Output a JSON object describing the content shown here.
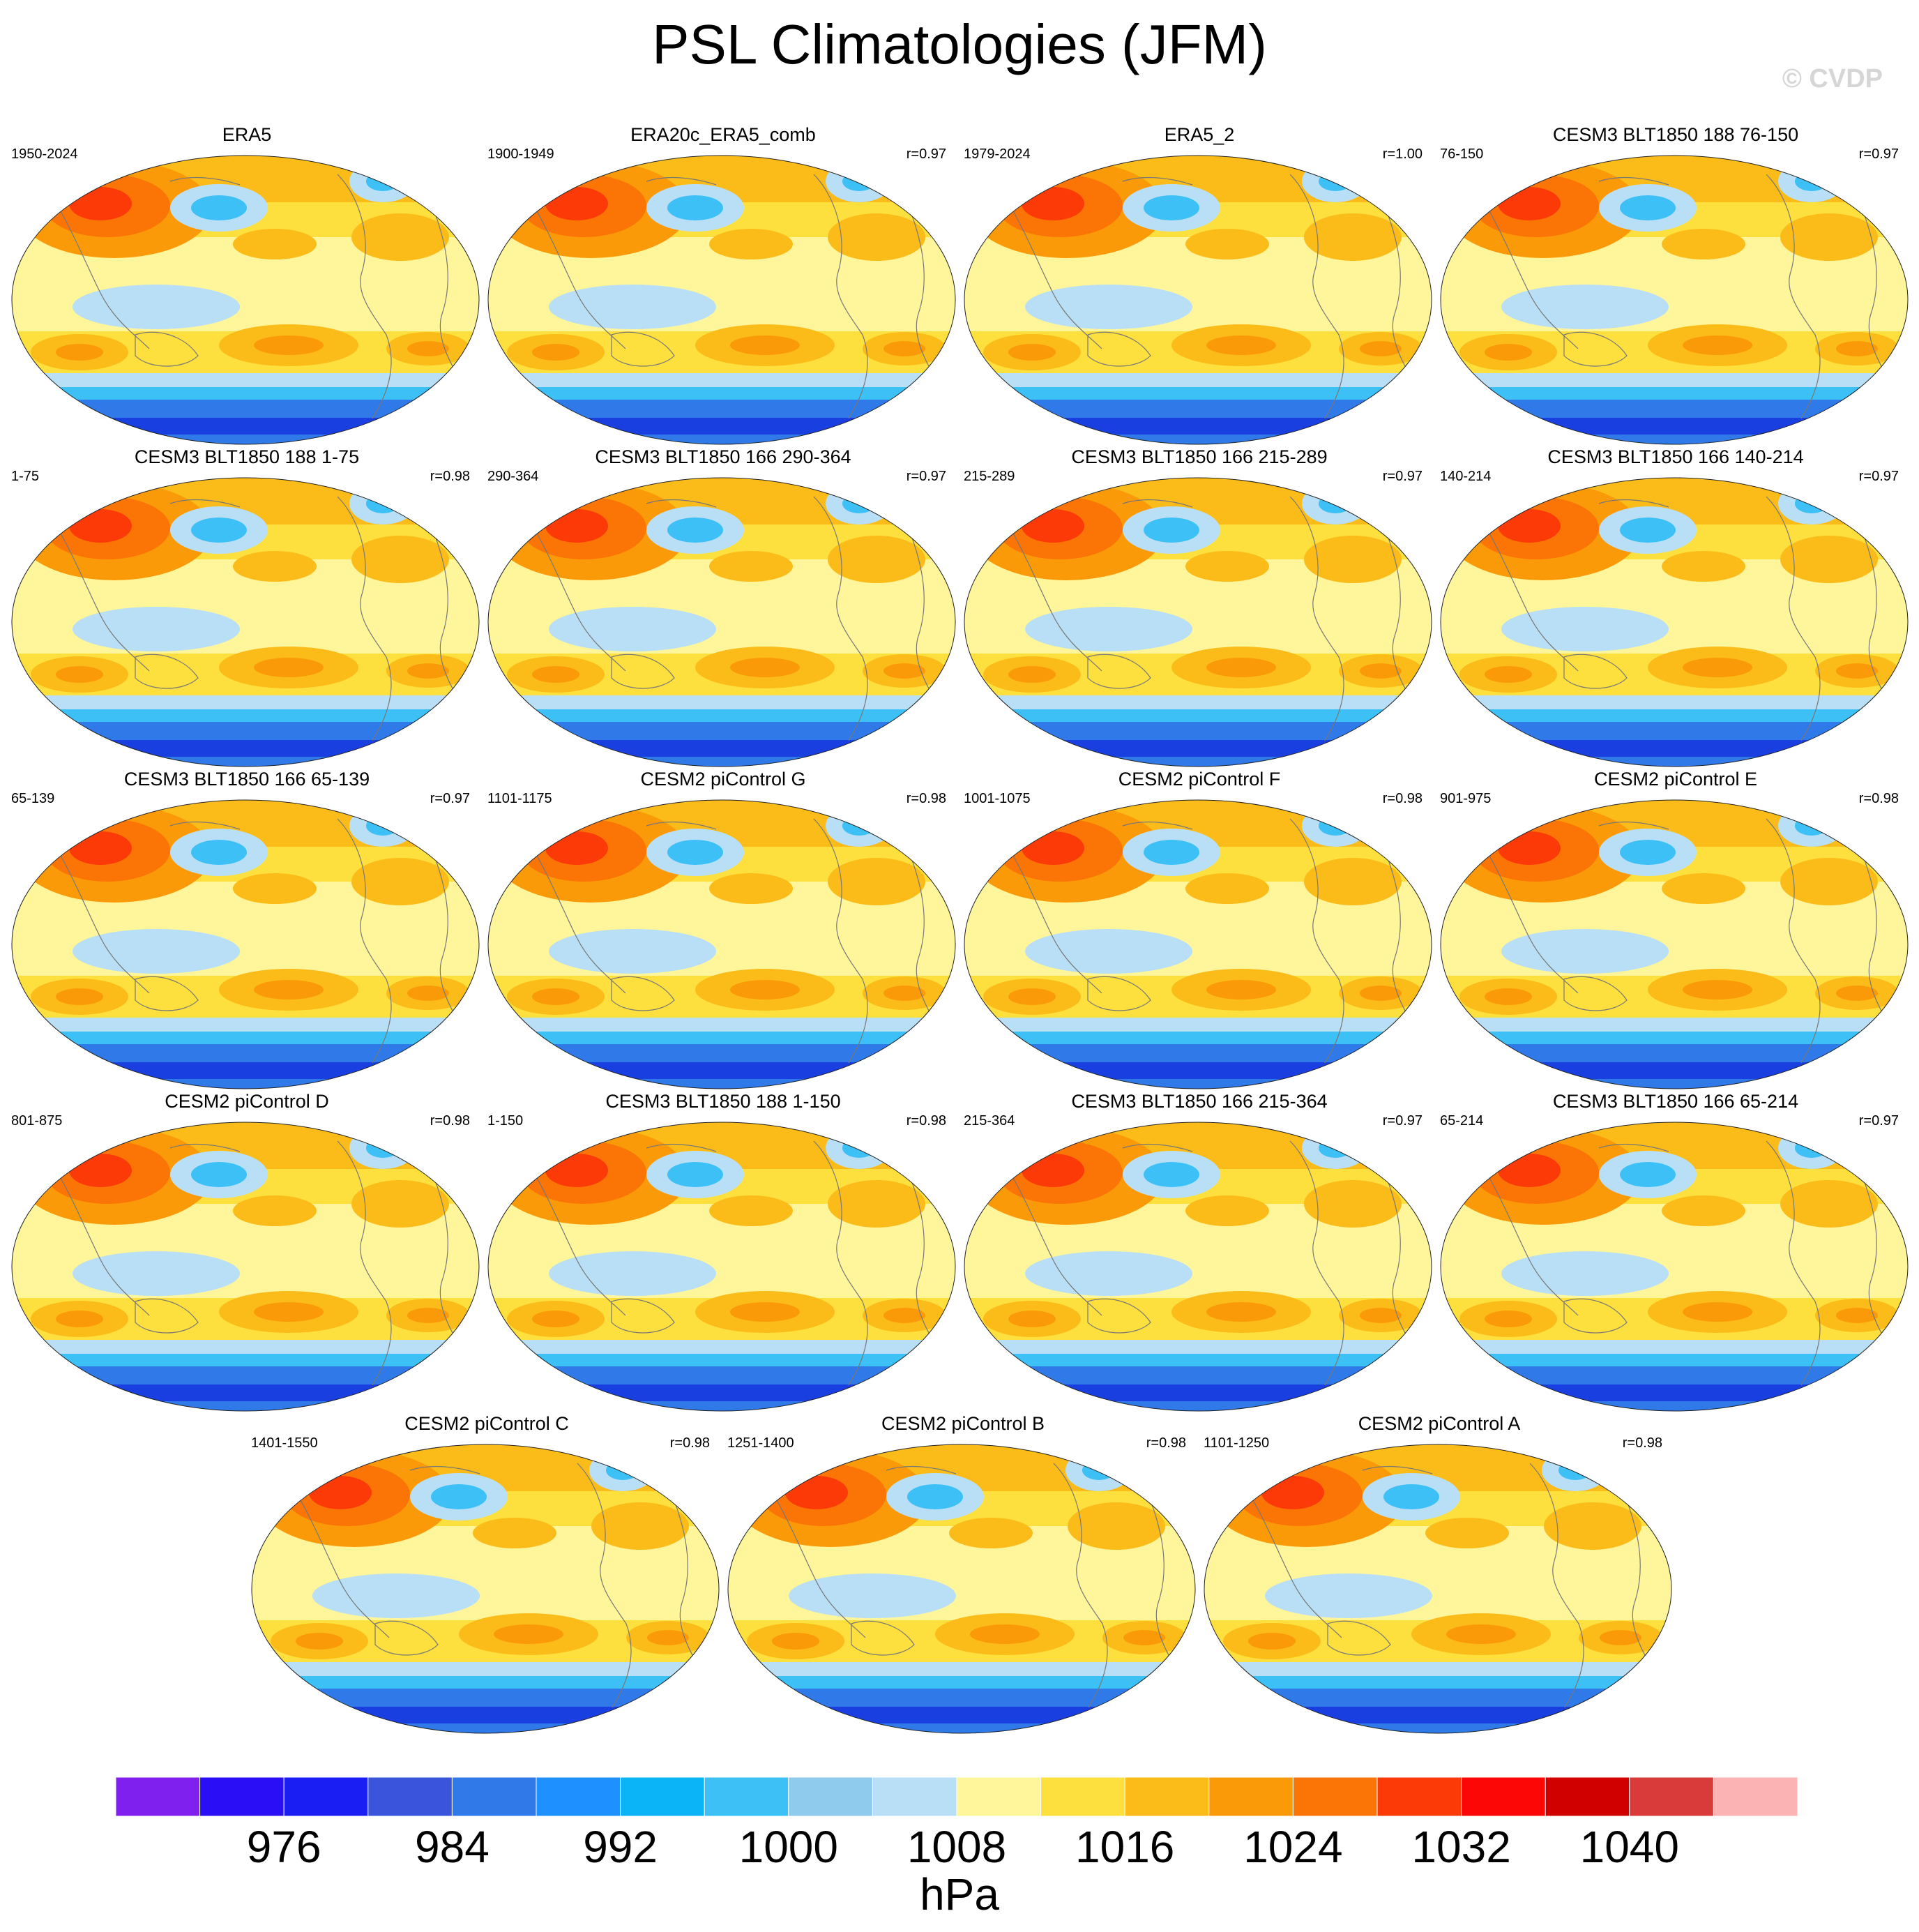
{
  "title": "PSL Climatologies (JFM)",
  "copyright": "© CVDP",
  "units": "hPa",
  "panels": [
    {
      "name": "ERA5",
      "years": "1950-2024",
      "r": ""
    },
    {
      "name": "ERA20c_ERA5_comb",
      "years": "1900-1949",
      "r": "r=0.97"
    },
    {
      "name": "ERA5_2",
      "years": "1979-2024",
      "r": "r=1.00"
    },
    {
      "name": "CESM3 BLT1850 188 76-150",
      "years": "76-150",
      "r": "r=0.97"
    },
    {
      "name": "CESM3 BLT1850 188 1-75",
      "years": "1-75",
      "r": "r=0.98"
    },
    {
      "name": "CESM3 BLT1850 166 290-364",
      "years": "290-364",
      "r": "r=0.97"
    },
    {
      "name": "CESM3 BLT1850 166 215-289",
      "years": "215-289",
      "r": "r=0.97"
    },
    {
      "name": "CESM3 BLT1850 166 140-214",
      "years": "140-214",
      "r": "r=0.97"
    },
    {
      "name": "CESM3 BLT1850 166 65-139",
      "years": "65-139",
      "r": "r=0.97"
    },
    {
      "name": "CESM2 piControl G",
      "years": "1101-1175",
      "r": "r=0.98"
    },
    {
      "name": "CESM2 piControl F",
      "years": "1001-1075",
      "r": "r=0.98"
    },
    {
      "name": "CESM2 piControl E",
      "years": "901-975",
      "r": "r=0.98"
    },
    {
      "name": "CESM2 piControl D",
      "years": "801-875",
      "r": "r=0.98"
    },
    {
      "name": "CESM3 BLT1850 188 1-150",
      "years": "1-150",
      "r": "r=0.98"
    },
    {
      "name": "CESM3 BLT1850 166 215-364",
      "years": "215-364",
      "r": "r=0.97"
    },
    {
      "name": "CESM3 BLT1850 166 65-214",
      "years": "65-214",
      "r": "r=0.97"
    },
    {
      "name": "CESM2 piControl C",
      "years": "1401-1550",
      "r": "r=0.98"
    },
    {
      "name": "CESM2 piControl B",
      "years": "1251-1400",
      "r": "r=0.98"
    },
    {
      "name": "CESM2 piControl A",
      "years": "1101-1250",
      "r": "r=0.98"
    }
  ],
  "colorbar": {
    "colors": [
      "#7f20ee",
      "#2a0ef5",
      "#1a1ef2",
      "#3a55dc",
      "#2f79e8",
      "#1e90ff",
      "#0bb3f7",
      "#3cc0f5",
      "#8fcbec",
      "#b8dff5",
      "#fff59a",
      "#fddf3e",
      "#fbbc19",
      "#fb9a08",
      "#fb7406",
      "#fb3a08",
      "#fc0606",
      "#d10000",
      "#d93a3a",
      "#fbb3b3"
    ],
    "labels": [
      "976",
      "984",
      "992",
      "1000",
      "1008",
      "1016",
      "1024",
      "1032",
      "1040"
    ],
    "label_positions": [
      2,
      4,
      6,
      8,
      10,
      12,
      14,
      16,
      18
    ]
  },
  "map_palette": {
    "deep_blue": "#1a3fe0",
    "mid_blue": "#2f79e8",
    "light_blue": "#3cc0f5",
    "pale_blue": "#b8dff5",
    "pale_yellow": "#fff59a",
    "yellow": "#fddf3e",
    "light_orange": "#fbbc19",
    "orange": "#fb9a08",
    "dark_orange": "#fb7406",
    "red": "#fb3a08"
  }
}
